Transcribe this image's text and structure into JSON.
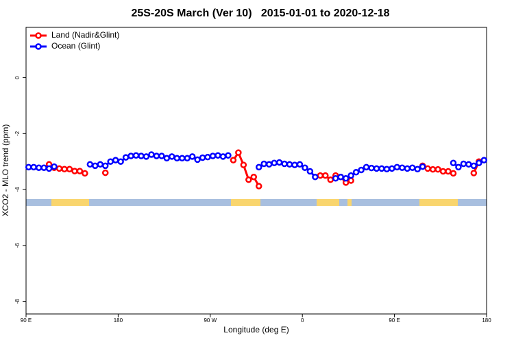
{
  "chart_data": {
    "type": "line",
    "title": "25S-20S March (Ver 10)   2015-01-01 to 2020-12-18",
    "xlabel": "Longitude (deg E)",
    "ylabel": "XCO2 - MLO trend (ppm)",
    "x": [
      92.5,
      97.5,
      102.5,
      107.5,
      112.5,
      117.5,
      122.5,
      127.5,
      132.5,
      137.5,
      142.5,
      147.5,
      152.5,
      157.5,
      162.5,
      167.5,
      172.5,
      177.5,
      182.5,
      187.5,
      192.5,
      197.5,
      202.5,
      207.5,
      212.5,
      217.5,
      222.5,
      227.5,
      232.5,
      237.5,
      242.5,
      247.5,
      252.5,
      257.5,
      262.5,
      267.5,
      272.5,
      277.5,
      282.5,
      287.5,
      292.5,
      297.5,
      302.5,
      307.5,
      312.5,
      317.5,
      322.5,
      327.5,
      332.5,
      337.5,
      342.5,
      347.5,
      352.5,
      357.5,
      362.5,
      367.5,
      372.5,
      377.5,
      382.5,
      387.5,
      392.5,
      397.5,
      402.5,
      407.5,
      412.5,
      417.5,
      422.5,
      427.5,
      432.5,
      437.5,
      442.5,
      447.5,
      452.5,
      457.5,
      462.5,
      467.5,
      472.5,
      477.5,
      482.5,
      487.5,
      492.5,
      497.5,
      502.5,
      507.5,
      512.5,
      517.5,
      522.5,
      527.5,
      532.5,
      537.5
    ],
    "series": [
      {
        "name": "Land (Nadir&Glint)",
        "color": "#ff0000",
        "values": [
          null,
          null,
          null,
          null,
          -3.1,
          -3.22,
          -3.25,
          -3.27,
          -3.27,
          -3.34,
          -3.34,
          -3.42,
          null,
          null,
          null,
          -3.4,
          null,
          null,
          null,
          null,
          null,
          null,
          null,
          null,
          null,
          null,
          null,
          null,
          null,
          null,
          null,
          null,
          null,
          null,
          null,
          null,
          null,
          null,
          null,
          null,
          -2.95,
          -2.68,
          -3.12,
          -3.65,
          -3.55,
          -3.88,
          null,
          null,
          null,
          null,
          null,
          null,
          null,
          null,
          null,
          null,
          null,
          -3.5,
          -3.5,
          -3.65,
          -3.5,
          -3.55,
          -3.75,
          -3.68,
          null,
          null,
          null,
          null,
          null,
          null,
          null,
          null,
          null,
          null,
          null,
          null,
          null,
          -3.15,
          -3.25,
          -3.28,
          -3.28,
          -3.35,
          -3.35,
          -3.42,
          null,
          null,
          null,
          -3.41,
          -3.0,
          null
        ]
      },
      {
        "name": "Ocean (Glint)",
        "color": "#0000ff",
        "values": [
          -3.2,
          -3.2,
          -3.22,
          -3.22,
          -3.25,
          -3.18,
          null,
          null,
          null,
          null,
          null,
          null,
          -3.1,
          -3.15,
          -3.1,
          -3.15,
          -3.0,
          -2.95,
          -3.0,
          -2.85,
          -2.8,
          -2.78,
          -2.8,
          -2.82,
          -2.75,
          -2.8,
          -2.8,
          -2.88,
          -2.82,
          -2.88,
          -2.88,
          -2.88,
          -2.82,
          -2.93,
          -2.86,
          -2.84,
          -2.8,
          -2.78,
          -2.82,
          -2.78,
          null,
          null,
          null,
          null,
          null,
          -3.2,
          -3.08,
          -3.1,
          -3.05,
          -3.03,
          -3.08,
          -3.1,
          -3.12,
          -3.1,
          -3.22,
          -3.35,
          -3.55,
          null,
          null,
          null,
          -3.6,
          -3.55,
          -3.6,
          -3.5,
          -3.38,
          -3.3,
          -3.2,
          -3.23,
          -3.25,
          -3.25,
          -3.27,
          -3.25,
          -3.2,
          -3.22,
          -3.25,
          -3.22,
          -3.27,
          -3.18,
          null,
          null,
          null,
          null,
          null,
          -3.05,
          -3.2,
          -3.08,
          -3.1,
          -3.15,
          -3.05,
          -2.95
        ]
      }
    ],
    "xlim": [
      90,
      540
    ],
    "xticks": [
      {
        "value": 90,
        "label": "90 E"
      },
      {
        "value": 180,
        "label": "180"
      },
      {
        "value": 270,
        "label": "90 W"
      },
      {
        "value": 360,
        "label": "0"
      },
      {
        "value": 450,
        "label": "90 E"
      },
      {
        "value": 540,
        "label": "180"
      }
    ],
    "ylim": [
      -8.45,
      1.8
    ],
    "yticks": [
      0,
      -2,
      -4,
      -6,
      -8
    ],
    "legend": "top-left"
  }
}
